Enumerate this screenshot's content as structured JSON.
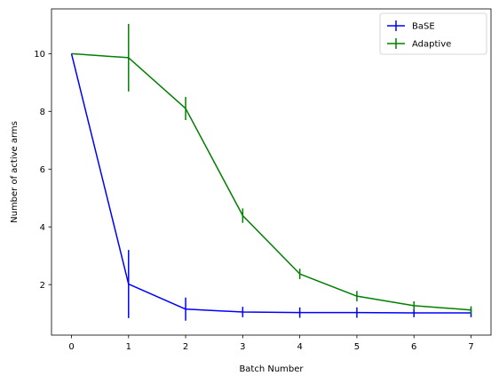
{
  "chart_data": {
    "type": "line",
    "x": [
      0,
      1,
      2,
      3,
      4,
      5,
      6,
      7
    ],
    "x_ticks": [
      "0",
      "1",
      "2",
      "3",
      "4",
      "5",
      "6",
      "7"
    ],
    "y_ticks": [
      "2",
      "4",
      "6",
      "8",
      "10"
    ],
    "y_tick_values": [
      2,
      4,
      6,
      8,
      10
    ],
    "xlabel": "Batch Number",
    "ylabel": "Number of active arms",
    "xlim": [
      -0.35,
      7.35
    ],
    "ylim": [
      0.25,
      11.55
    ],
    "grid": false,
    "legend_position": "top-right",
    "series": [
      {
        "name": "BaSE",
        "color": "#0000ff",
        "values": [
          10.0,
          2.02,
          1.15,
          1.05,
          1.03,
          1.03,
          1.02,
          1.02
        ],
        "errors": [
          0.0,
          1.18,
          0.4,
          0.18,
          0.18,
          0.18,
          0.15,
          0.15
        ]
      },
      {
        "name": "Adaptive",
        "color": "#008000",
        "values": [
          10.0,
          9.86,
          8.1,
          4.39,
          2.37,
          1.6,
          1.27,
          1.12
        ],
        "errors": [
          0.0,
          1.17,
          0.4,
          0.25,
          0.18,
          0.18,
          0.15,
          0.13
        ]
      }
    ]
  }
}
